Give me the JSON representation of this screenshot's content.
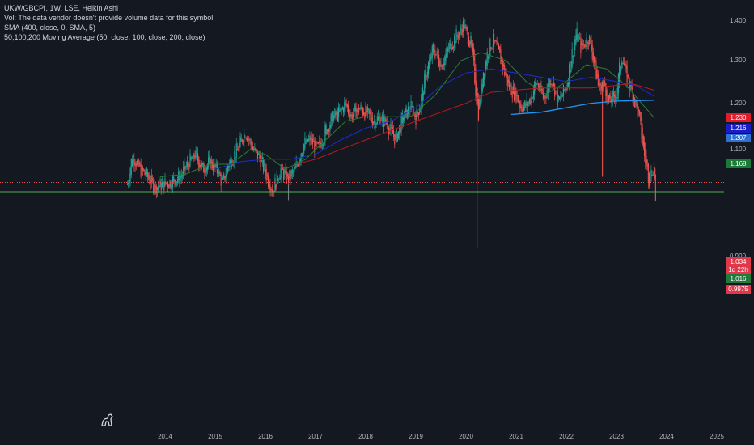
{
  "legend": {
    "title": "UKW/GBCPI, 1W, LSE, Heikin Ashi",
    "vol_note": "Vol: The data vendor doesn't provide volume data for this symbol.",
    "sma_note": "SMA (400, close, 0, SMA, 5)",
    "ma_note": "50,100,200 Moving Average (50, close, 100, close, 200, close)"
  },
  "price_tags": {
    "ma200": "1.230",
    "ma100": "1.216",
    "sma400": "1.207",
    "ma50": "1.168",
    "close": "1.034",
    "countdown": "1d 22h",
    "support": "1.016",
    "low": "0.9975"
  },
  "colors": {
    "background": "#141821",
    "up": "#26a69a",
    "down": "#ef5350",
    "ma50": "#2e7d32",
    "ma100": "#1c2ec8",
    "ma200": "#b71c1c",
    "sma400": "#2196f3",
    "support_line": "#4caf50",
    "close_line": "#ef5350",
    "ma200_tag": "#e01b2a",
    "ma100_tag": "#1a1ec2",
    "sma400_tag": "#2e6fd1",
    "ma50_tag": "#1b7a35",
    "close_tag": "#e0384a",
    "support_tag": "#217a3c",
    "low_tag": "#e0384a"
  },
  "chart_data": {
    "type": "candlestick",
    "y_axis": {
      "scale": "log",
      "range": [
        0.875,
        1.43
      ],
      "ticks": [
        "1.400",
        "1.300",
        "1.200",
        "1.100",
        "0.900"
      ]
    },
    "x_axis": {
      "ticks": [
        "2014",
        "2015",
        "2016",
        "2017",
        "2018",
        "2019",
        "2020",
        "2021",
        "2022",
        "2023",
        "2024",
        "2025"
      ]
    },
    "series": [
      {
        "name": "UKW/GBCPI",
        "path": [
          [
            2013.25,
            1.03
          ],
          [
            2013.35,
            1.09
          ],
          [
            2013.5,
            1.06
          ],
          [
            2013.65,
            1.045
          ],
          [
            2013.8,
            1.025
          ],
          [
            2013.95,
            1.03
          ],
          [
            2014.1,
            1.035
          ],
          [
            2014.3,
            1.045
          ],
          [
            2014.45,
            1.07
          ],
          [
            2014.6,
            1.09
          ],
          [
            2014.75,
            1.06
          ],
          [
            2014.9,
            1.075
          ],
          [
            2015.05,
            1.055
          ],
          [
            2015.15,
            1.03
          ],
          [
            2015.25,
            1.07
          ],
          [
            2015.45,
            1.1
          ],
          [
            2015.6,
            1.14
          ],
          [
            2015.75,
            1.1
          ],
          [
            2015.9,
            1.08
          ],
          [
            2016.05,
            1.04
          ],
          [
            2016.15,
            1.02
          ],
          [
            2016.3,
            1.06
          ],
          [
            2016.45,
            1.04
          ],
          [
            2016.6,
            1.06
          ],
          [
            2016.75,
            1.11
          ],
          [
            2016.9,
            1.12
          ],
          [
            2017.05,
            1.1
          ],
          [
            2017.2,
            1.14
          ],
          [
            2017.35,
            1.17
          ],
          [
            2017.5,
            1.18
          ],
          [
            2017.6,
            1.2
          ],
          [
            2017.7,
            1.17
          ],
          [
            2017.85,
            1.19
          ],
          [
            2018.0,
            1.18
          ],
          [
            2018.15,
            1.16
          ],
          [
            2018.3,
            1.17
          ],
          [
            2018.45,
            1.15
          ],
          [
            2018.6,
            1.12
          ],
          [
            2018.75,
            1.17
          ],
          [
            2018.9,
            1.19
          ],
          [
            2019.0,
            1.17
          ],
          [
            2019.1,
            1.2
          ],
          [
            2019.2,
            1.27
          ],
          [
            2019.35,
            1.33
          ],
          [
            2019.5,
            1.29
          ],
          [
            2019.65,
            1.33
          ],
          [
            2019.8,
            1.36
          ],
          [
            2019.95,
            1.39
          ],
          [
            2020.1,
            1.34
          ],
          [
            2020.15,
            1.29
          ],
          [
            2020.2,
            1.22
          ],
          [
            2020.25,
            1.18
          ],
          [
            2020.35,
            1.28
          ],
          [
            2020.45,
            1.33
          ],
          [
            2020.55,
            1.35
          ],
          [
            2020.7,
            1.3
          ],
          [
            2020.85,
            1.24
          ],
          [
            2021.0,
            1.22
          ],
          [
            2021.1,
            1.19
          ],
          [
            2021.25,
            1.2
          ],
          [
            2021.4,
            1.25
          ],
          [
            2021.55,
            1.21
          ],
          [
            2021.7,
            1.26
          ],
          [
            2021.85,
            1.2
          ],
          [
            2022.0,
            1.24
          ],
          [
            2022.1,
            1.31
          ],
          [
            2022.2,
            1.37
          ],
          [
            2022.3,
            1.33
          ],
          [
            2022.45,
            1.36
          ],
          [
            2022.55,
            1.3
          ],
          [
            2022.65,
            1.23
          ],
          [
            2022.75,
            1.25
          ],
          [
            2022.85,
            1.2
          ],
          [
            2023.0,
            1.22
          ],
          [
            2023.1,
            1.32
          ],
          [
            2023.2,
            1.26
          ],
          [
            2023.3,
            1.23
          ],
          [
            2023.45,
            1.17
          ],
          [
            2023.55,
            1.09
          ],
          [
            2023.65,
            1.04
          ],
          [
            2023.75,
            1.07
          ],
          [
            2023.78,
            1.034
          ]
        ]
      },
      {
        "name": "MA 50",
        "path": [
          [
            2013.9,
            1.045
          ],
          [
            2014.4,
            1.05
          ],
          [
            2014.9,
            1.07
          ],
          [
            2015.3,
            1.07
          ],
          [
            2015.7,
            1.1
          ],
          [
            2016.0,
            1.09
          ],
          [
            2016.4,
            1.06
          ],
          [
            2016.8,
            1.08
          ],
          [
            2017.2,
            1.12
          ],
          [
            2017.6,
            1.16
          ],
          [
            2018.0,
            1.17
          ],
          [
            2018.5,
            1.17
          ],
          [
            2018.9,
            1.17
          ],
          [
            2019.4,
            1.22
          ],
          [
            2019.9,
            1.3
          ],
          [
            2020.3,
            1.32
          ],
          [
            2020.8,
            1.3
          ],
          [
            2021.2,
            1.25
          ],
          [
            2021.6,
            1.22
          ],
          [
            2022.0,
            1.25
          ],
          [
            2022.4,
            1.29
          ],
          [
            2022.8,
            1.28
          ],
          [
            2023.2,
            1.24
          ],
          [
            2023.5,
            1.2
          ],
          [
            2023.75,
            1.168
          ]
        ]
      },
      {
        "name": "MA 100",
        "path": [
          [
            2015.0,
            1.06
          ],
          [
            2015.5,
            1.075
          ],
          [
            2016.0,
            1.08
          ],
          [
            2016.5,
            1.08
          ],
          [
            2017.0,
            1.09
          ],
          [
            2017.5,
            1.12
          ],
          [
            2018.0,
            1.145
          ],
          [
            2018.5,
            1.16
          ],
          [
            2019.0,
            1.19
          ],
          [
            2019.5,
            1.24
          ],
          [
            2020.0,
            1.27
          ],
          [
            2020.5,
            1.28
          ],
          [
            2021.0,
            1.27
          ],
          [
            2021.5,
            1.26
          ],
          [
            2022.0,
            1.25
          ],
          [
            2022.5,
            1.26
          ],
          [
            2023.0,
            1.25
          ],
          [
            2023.4,
            1.24
          ],
          [
            2023.75,
            1.216
          ]
        ]
      },
      {
        "name": "MA 200",
        "path": [
          [
            2016.6,
            1.07
          ],
          [
            2017.0,
            1.08
          ],
          [
            2017.5,
            1.1
          ],
          [
            2018.0,
            1.12
          ],
          [
            2018.5,
            1.14
          ],
          [
            2019.0,
            1.16
          ],
          [
            2019.5,
            1.18
          ],
          [
            2020.0,
            1.2
          ],
          [
            2020.5,
            1.225
          ],
          [
            2021.0,
            1.23
          ],
          [
            2021.5,
            1.235
          ],
          [
            2022.0,
            1.235
          ],
          [
            2022.5,
            1.235
          ],
          [
            2022.9,
            1.24
          ],
          [
            2023.3,
            1.245
          ],
          [
            2023.75,
            1.23
          ]
        ]
      },
      {
        "name": "SMA 400",
        "path": [
          [
            2020.9,
            1.175
          ],
          [
            2021.5,
            1.18
          ],
          [
            2022.0,
            1.19
          ],
          [
            2022.5,
            1.2
          ],
          [
            2023.0,
            1.205
          ],
          [
            2023.75,
            1.207
          ]
        ]
      }
    ],
    "spikes": [
      {
        "x": 2020.22,
        "high": 1.21,
        "low": 0.915
      },
      {
        "x": 2016.46,
        "high": 1.03,
        "low": 1.0
      },
      {
        "x": 2022.72,
        "high": 1.25,
        "low": 1.045
      },
      {
        "x": 2023.78,
        "high": 1.05,
        "low": 0.9975
      }
    ],
    "hlines": [
      {
        "value": 1.034,
        "style": "dotted"
      },
      {
        "value": 1.016,
        "style": "solid"
      }
    ]
  }
}
